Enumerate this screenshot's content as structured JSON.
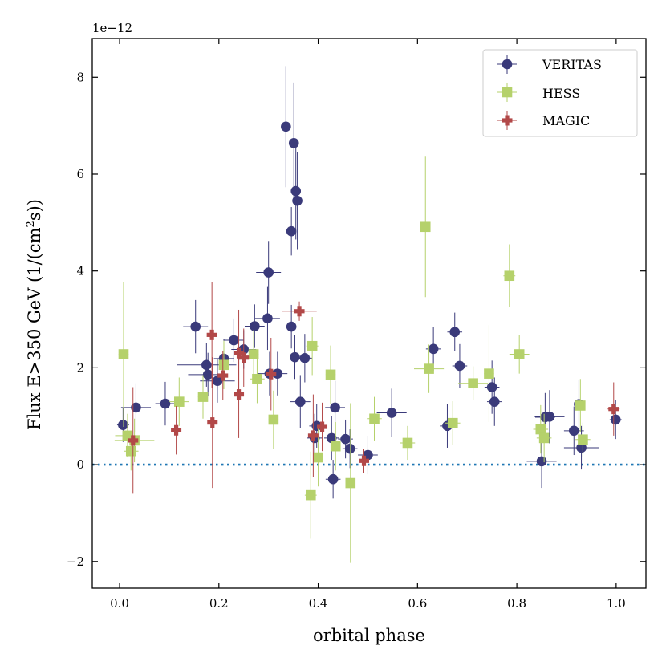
{
  "chart_data": {
    "type": "scatter",
    "title": "",
    "xlabel": "orbital phase",
    "ylabel_prefix": "Flux E>350 GeV (1/(cm",
    "ylabel_sup": "2",
    "ylabel_suffix": "s))",
    "y_offset_label": "1e−12",
    "xlim": [
      -0.055,
      1.06
    ],
    "ylim": [
      -2.55,
      8.8
    ],
    "x_ticks": [
      0.0,
      0.2,
      0.4,
      0.6,
      0.8,
      1.0
    ],
    "x_tick_labels": [
      "0.0",
      "0.2",
      "0.4",
      "0.6",
      "0.8",
      "1.0"
    ],
    "y_ticks": [
      -2,
      0,
      2,
      4,
      6,
      8
    ],
    "y_tick_labels": [
      "−2",
      "0",
      "2",
      "4",
      "6",
      "8"
    ],
    "zero_line": 0,
    "legend_position": "top-right",
    "series": [
      {
        "name": "VERITAS",
        "marker": "circle",
        "color": "#3a3a7a",
        "points": [
          {
            "x": 0.007,
            "y": 0.82,
            "xerr": 0.012,
            "yerr": 0.35
          },
          {
            "x": 0.033,
            "y": 1.18,
            "xerr": 0.03,
            "yerr": 0.5
          },
          {
            "x": 0.092,
            "y": 1.26,
            "xerr": 0.02,
            "yerr": 0.45
          },
          {
            "x": 0.153,
            "y": 2.85,
            "xerr": 0.025,
            "yerr": 0.55
          },
          {
            "x": 0.175,
            "y": 2.06,
            "xerr": 0.06,
            "yerr": 0.45
          },
          {
            "x": 0.178,
            "y": 1.86,
            "xerr": 0.04,
            "yerr": 0.45
          },
          {
            "x": 0.197,
            "y": 1.73,
            "xerr": 0.035,
            "yerr": 0.45
          },
          {
            "x": 0.21,
            "y": 2.19,
            "xerr": 0.02,
            "yerr": 0.4
          },
          {
            "x": 0.23,
            "y": 2.57,
            "xerr": 0.02,
            "yerr": 0.45
          },
          {
            "x": 0.25,
            "y": 2.38,
            "xerr": 0.025,
            "yerr": 0.4
          },
          {
            "x": 0.272,
            "y": 2.86,
            "xerr": 0.02,
            "yerr": 0.45
          },
          {
            "x": 0.298,
            "y": 3.02,
            "xerr": 0.025,
            "yerr": 0.65
          },
          {
            "x": 0.3,
            "y": 3.97,
            "xerr": 0.025,
            "yerr": 0.65
          },
          {
            "x": 0.302,
            "y": 1.88,
            "xerr": 0.025,
            "yerr": 0.45
          },
          {
            "x": 0.318,
            "y": 1.88,
            "xerr": 0.02,
            "yerr": 0.45
          },
          {
            "x": 0.335,
            "y": 6.98,
            "xerr": 0.01,
            "yerr": 1.25
          },
          {
            "x": 0.346,
            "y": 2.85,
            "xerr": 0.01,
            "yerr": 0.45
          },
          {
            "x": 0.346,
            "y": 4.82,
            "xerr": 0.01,
            "yerr": 0.5
          },
          {
            "x": 0.351,
            "y": 6.64,
            "xerr": 0.01,
            "yerr": 1.25
          },
          {
            "x": 0.353,
            "y": 2.22,
            "xerr": 0.01,
            "yerr": 0.45
          },
          {
            "x": 0.355,
            "y": 5.65,
            "xerr": 0.01,
            "yerr": 1.0
          },
          {
            "x": 0.358,
            "y": 5.45,
            "xerr": 0.01,
            "yerr": 1.0
          },
          {
            "x": 0.364,
            "y": 1.3,
            "xerr": 0.02,
            "yerr": 0.55
          },
          {
            "x": 0.373,
            "y": 2.2,
            "xerr": 0.015,
            "yerr": 0.5
          },
          {
            "x": 0.393,
            "y": 0.55,
            "xerr": 0.015,
            "yerr": 0.5
          },
          {
            "x": 0.397,
            "y": 0.8,
            "xerr": 0.015,
            "yerr": 0.45
          },
          {
            "x": 0.427,
            "y": 0.55,
            "xerr": 0.015,
            "yerr": 0.45
          },
          {
            "x": 0.43,
            "y": -0.3,
            "xerr": 0.015,
            "yerr": 0.4
          },
          {
            "x": 0.434,
            "y": 1.18,
            "xerr": 0.02,
            "yerr": 0.55
          },
          {
            "x": 0.455,
            "y": 0.53,
            "xerr": 0.015,
            "yerr": 0.4
          },
          {
            "x": 0.464,
            "y": 0.33,
            "xerr": 0.015,
            "yerr": 0.4
          },
          {
            "x": 0.5,
            "y": 0.2,
            "xerr": 0.02,
            "yerr": 0.4
          },
          {
            "x": 0.548,
            "y": 1.07,
            "xerr": 0.03,
            "yerr": 0.5
          },
          {
            "x": 0.632,
            "y": 2.39,
            "xerr": 0.015,
            "yerr": 0.45
          },
          {
            "x": 0.66,
            "y": 0.8,
            "xerr": 0.015,
            "yerr": 0.45
          },
          {
            "x": 0.675,
            "y": 2.74,
            "xerr": 0.015,
            "yerr": 0.4
          },
          {
            "x": 0.685,
            "y": 2.04,
            "xerr": 0.015,
            "yerr": 0.45
          },
          {
            "x": 0.75,
            "y": 1.6,
            "xerr": 0.015,
            "yerr": 0.55
          },
          {
            "x": 0.755,
            "y": 1.3,
            "xerr": 0.015,
            "yerr": 0.5
          },
          {
            "x": 0.85,
            "y": 0.07,
            "xerr": 0.03,
            "yerr": 0.55
          },
          {
            "x": 0.857,
            "y": 0.98,
            "xerr": 0.02,
            "yerr": 0.5
          },
          {
            "x": 0.866,
            "y": 0.99,
            "xerr": 0.03,
            "yerr": 0.55
          },
          {
            "x": 0.915,
            "y": 0.7,
            "xerr": 0.02,
            "yerr": 0.5
          },
          {
            "x": 0.925,
            "y": 1.25,
            "xerr": 0.01,
            "yerr": 0.5
          },
          {
            "x": 0.93,
            "y": 0.35,
            "xerr": 0.035,
            "yerr": 0.45
          },
          {
            "x": 0.999,
            "y": 0.93,
            "xerr": 0.012,
            "yerr": 0.4
          }
        ]
      },
      {
        "name": "HESS",
        "marker": "square",
        "color": "#b5d16b",
        "points": [
          {
            "x": 0.008,
            "y": 2.28,
            "xerr": 0.01,
            "yerr": 1.5
          },
          {
            "x": 0.016,
            "y": 0.6,
            "xerr": 0.025,
            "yerr": 0.45
          },
          {
            "x": 0.023,
            "y": 0.28,
            "xerr": 0.015,
            "yerr": 0.4
          },
          {
            "x": 0.03,
            "y": 0.5,
            "xerr": 0.04,
            "yerr": 0.45
          },
          {
            "x": 0.12,
            "y": 1.3,
            "xerr": 0.02,
            "yerr": 0.5
          },
          {
            "x": 0.168,
            "y": 1.4,
            "xerr": 0.01,
            "yerr": 0.45
          },
          {
            "x": 0.21,
            "y": 2.06,
            "xerr": 0.01,
            "yerr": 0.5
          },
          {
            "x": 0.27,
            "y": 2.28,
            "xerr": 0.01,
            "yerr": 0.5
          },
          {
            "x": 0.277,
            "y": 1.77,
            "xerr": 0.015,
            "yerr": 0.5
          },
          {
            "x": 0.31,
            "y": 0.93,
            "xerr": 0.01,
            "yerr": 0.6
          },
          {
            "x": 0.385,
            "y": -0.63,
            "xerr": 0.012,
            "yerr": 0.9
          },
          {
            "x": 0.388,
            "y": 2.45,
            "xerr": 0.012,
            "yerr": 0.6
          },
          {
            "x": 0.4,
            "y": 0.15,
            "xerr": 0.01,
            "yerr": 0.6
          },
          {
            "x": 0.425,
            "y": 1.86,
            "xerr": 0.01,
            "yerr": 0.6
          },
          {
            "x": 0.435,
            "y": 0.38,
            "xerr": 0.01,
            "yerr": 0.5
          },
          {
            "x": 0.465,
            "y": -0.38,
            "xerr": 0.01,
            "yerr": 1.65
          },
          {
            "x": 0.513,
            "y": 0.95,
            "xerr": 0.015,
            "yerr": 0.45
          },
          {
            "x": 0.58,
            "y": 0.45,
            "xerr": 0.015,
            "yerr": 0.35
          },
          {
            "x": 0.616,
            "y": 4.91,
            "xerr": 0.01,
            "yerr": 1.45
          },
          {
            "x": 0.623,
            "y": 1.98,
            "xerr": 0.03,
            "yerr": 0.5
          },
          {
            "x": 0.671,
            "y": 0.86,
            "xerr": 0.015,
            "yerr": 0.45
          },
          {
            "x": 0.712,
            "y": 1.68,
            "xerr": 0.03,
            "yerr": 0.35
          },
          {
            "x": 0.744,
            "y": 1.88,
            "xerr": 0.01,
            "yerr": 1.0
          },
          {
            "x": 0.785,
            "y": 3.9,
            "xerr": 0.012,
            "yerr": 0.65
          },
          {
            "x": 0.805,
            "y": 2.28,
            "xerr": 0.02,
            "yerr": 0.4
          },
          {
            "x": 0.848,
            "y": 0.73,
            "xerr": 0.015,
            "yerr": 0.5
          },
          {
            "x": 0.855,
            "y": 0.55,
            "xerr": 0.015,
            "yerr": 0.5
          },
          {
            "x": 0.928,
            "y": 1.22,
            "xerr": 0.01,
            "yerr": 0.55
          },
          {
            "x": 0.933,
            "y": 0.52,
            "xerr": 0.015,
            "yerr": 0.35
          }
        ]
      },
      {
        "name": "MAGIC",
        "marker": "plus",
        "color": "#b24848",
        "points": [
          {
            "x": 0.027,
            "y": 0.5,
            "xerr": 0.008,
            "yerr": 1.1
          },
          {
            "x": 0.114,
            "y": 0.71,
            "xerr": 0.008,
            "yerr": 0.5
          },
          {
            "x": 0.186,
            "y": 2.68,
            "xerr": 0.008,
            "yerr": 1.1
          },
          {
            "x": 0.187,
            "y": 0.87,
            "xerr": 0.008,
            "yerr": 1.35
          },
          {
            "x": 0.208,
            "y": 1.84,
            "xerr": 0.008,
            "yerr": 0.5
          },
          {
            "x": 0.24,
            "y": 2.3,
            "xerr": 0.008,
            "yerr": 0.9
          },
          {
            "x": 0.24,
            "y": 1.45,
            "xerr": 0.008,
            "yerr": 0.9
          },
          {
            "x": 0.25,
            "y": 2.21,
            "xerr": 0.008,
            "yerr": 0.6
          },
          {
            "x": 0.305,
            "y": 1.87,
            "xerr": 0.008,
            "yerr": 0.75
          },
          {
            "x": 0.362,
            "y": 3.17,
            "xerr": 0.035,
            "yerr": 0.2
          },
          {
            "x": 0.39,
            "y": 0.6,
            "xerr": 0.008,
            "yerr": 0.85
          },
          {
            "x": 0.408,
            "y": 0.78,
            "xerr": 0.008,
            "yerr": 0.5
          },
          {
            "x": 0.492,
            "y": 0.08,
            "xerr": 0.008,
            "yerr": 0.25
          },
          {
            "x": 0.995,
            "y": 1.15,
            "xerr": 0.012,
            "yerr": 0.55
          }
        ]
      }
    ]
  },
  "legend": {
    "items": [
      {
        "label": "VERITAS"
      },
      {
        "label": "HESS"
      },
      {
        "label": "MAGIC"
      }
    ]
  },
  "colors": {
    "zero_line": "#1f77b4",
    "axis": "#000000",
    "legend_border": "#cccccc"
  }
}
